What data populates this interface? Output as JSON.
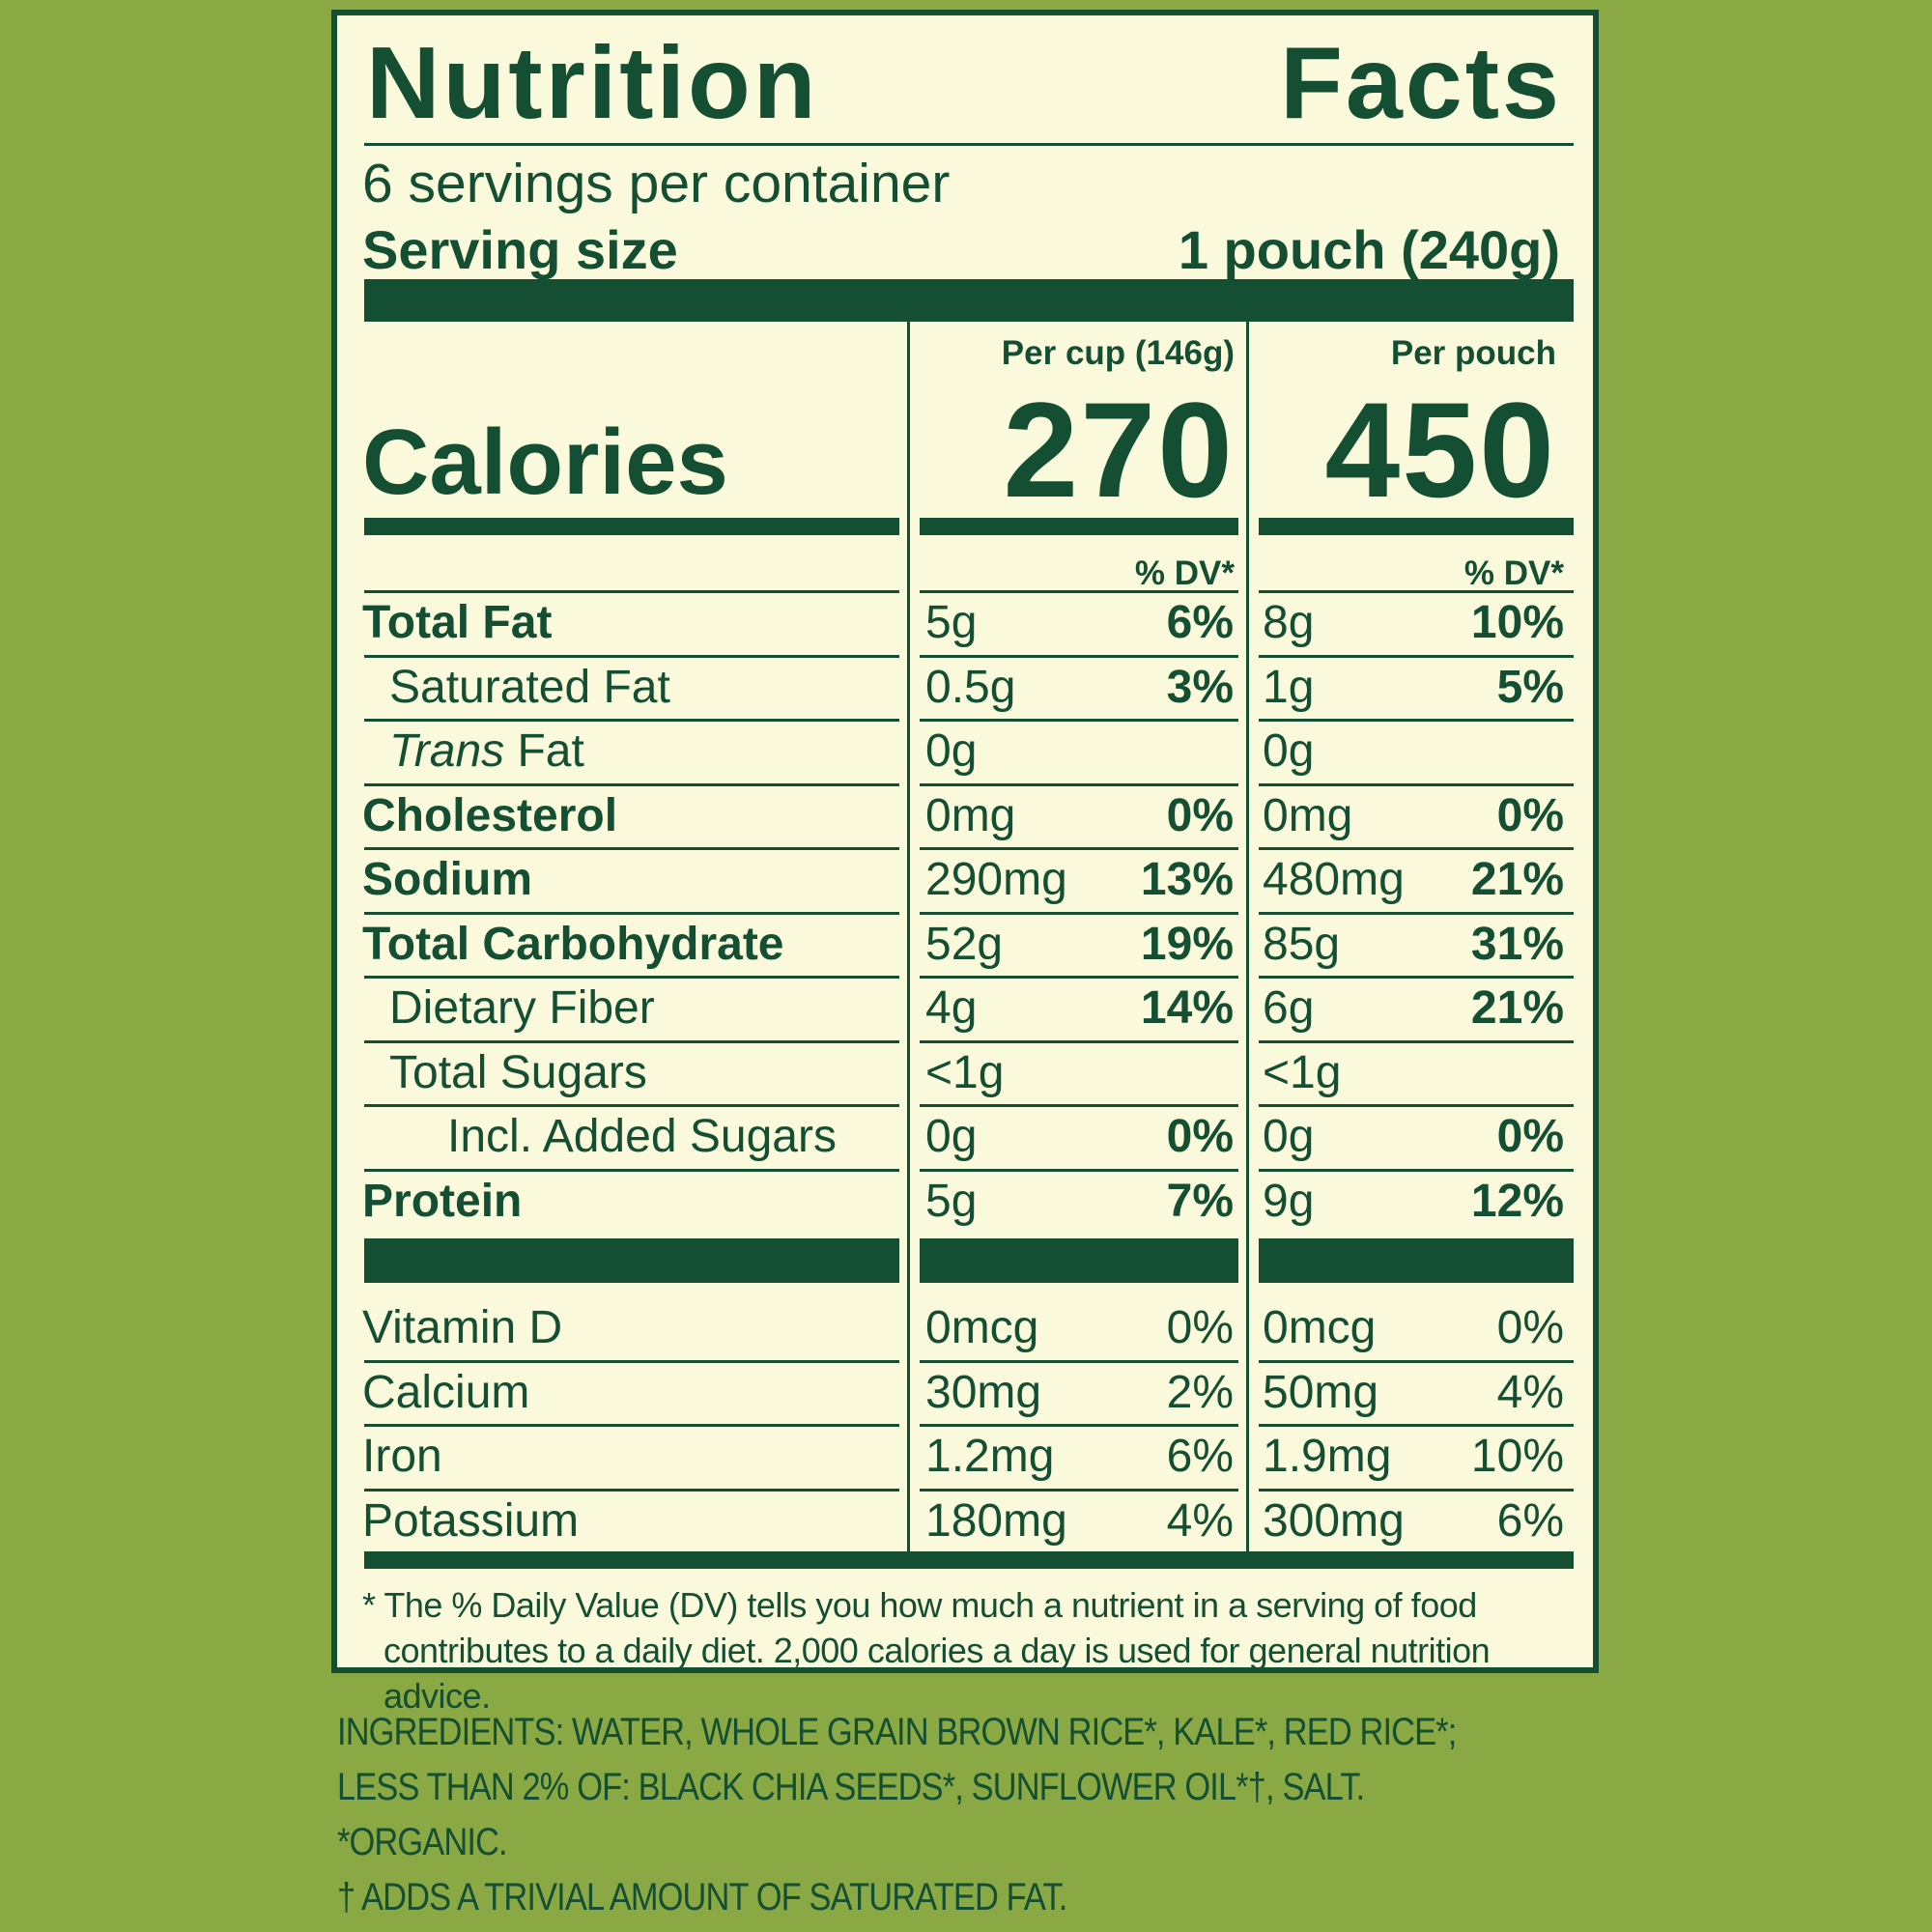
{
  "header": {
    "title_left": "Nutrition",
    "title_right": "Facts",
    "servings_per_container": "6 servings per container",
    "serving_size_label": "Serving size",
    "serving_size_value": "1 pouch (240g)"
  },
  "calories": {
    "label": "Calories",
    "col1_heading": "Per cup (146g)",
    "col2_heading": "Per pouch",
    "col1_value": "270",
    "col2_value": "450",
    "dv_heading": "% DV*"
  },
  "nutrients": [
    {
      "name": "Total Fat",
      "col1": "5g",
      "col1_pct": "6%",
      "col2": "8g",
      "col2_pct": "10%"
    },
    {
      "name": "Saturated Fat",
      "col1": "0.5g",
      "col1_pct": "3%",
      "col2": "1g",
      "col2_pct": "5%"
    },
    {
      "name_italic": "Trans",
      "name": " Fat",
      "col1": "0g",
      "col1_pct": "",
      "col2": "0g",
      "col2_pct": ""
    },
    {
      "name": "Cholesterol",
      "col1": "0mg",
      "col1_pct": "0%",
      "col2": "0mg",
      "col2_pct": "0%"
    },
    {
      "name": "Sodium",
      "col1": "290mg",
      "col1_pct": "13%",
      "col2": "480mg",
      "col2_pct": "21%"
    },
    {
      "name": "Total Carbohydrate",
      "col1": "52g",
      "col1_pct": "19%",
      "col2": "85g",
      "col2_pct": "31%"
    },
    {
      "name": "Dietary Fiber",
      "col1": "4g",
      "col1_pct": "14%",
      "col2": "6g",
      "col2_pct": "21%"
    },
    {
      "name": "Total Sugars",
      "col1": "<1g",
      "col1_pct": "",
      "col2": "<1g",
      "col2_pct": ""
    },
    {
      "name": "Incl. Added Sugars",
      "col1": "0g",
      "col1_pct": "0%",
      "col2": "0g",
      "col2_pct": "0%"
    },
    {
      "name": "Protein",
      "col1": "5g",
      "col1_pct": "7%",
      "col2": "9g",
      "col2_pct": "12%"
    }
  ],
  "vitamins": [
    {
      "name": "Vitamin D",
      "col1": "0mcg",
      "col1_pct": "0%",
      "col2": "0mcg",
      "col2_pct": "0%"
    },
    {
      "name": "Calcium",
      "col1": "30mg",
      "col1_pct": "2%",
      "col2": "50mg",
      "col2_pct": "4%"
    },
    {
      "name": "Iron",
      "col1": "1.2mg",
      "col1_pct": "6%",
      "col2": "1.9mg",
      "col2_pct": "10%"
    },
    {
      "name": "Potassium",
      "col1": "180mg",
      "col1_pct": "4%",
      "col2": "300mg",
      "col2_pct": "6%"
    }
  ],
  "footnote": {
    "line1": "* The % Daily Value (DV) tells you how much a nutrient in a serving of food",
    "line2": "contributes to a daily diet. 2,000 calories a day is used for general nutrition advice."
  },
  "ingredients": {
    "line1": "INGREDIENTS: WATER, WHOLE GRAIN BROWN RICE*, KALE*, RED RICE*;",
    "line2": "LESS THAN 2% OF: BLACK CHIA SEEDS*, SUNFLOWER OIL*†, SALT.",
    "line3": "*ORGANIC.",
    "line4": "† ADDS A TRIVIAL AMOUNT OF SATURATED FAT."
  },
  "colors": {
    "background": "#8aa843",
    "label_background": "#fbf9dc",
    "ink": "#154f33"
  }
}
